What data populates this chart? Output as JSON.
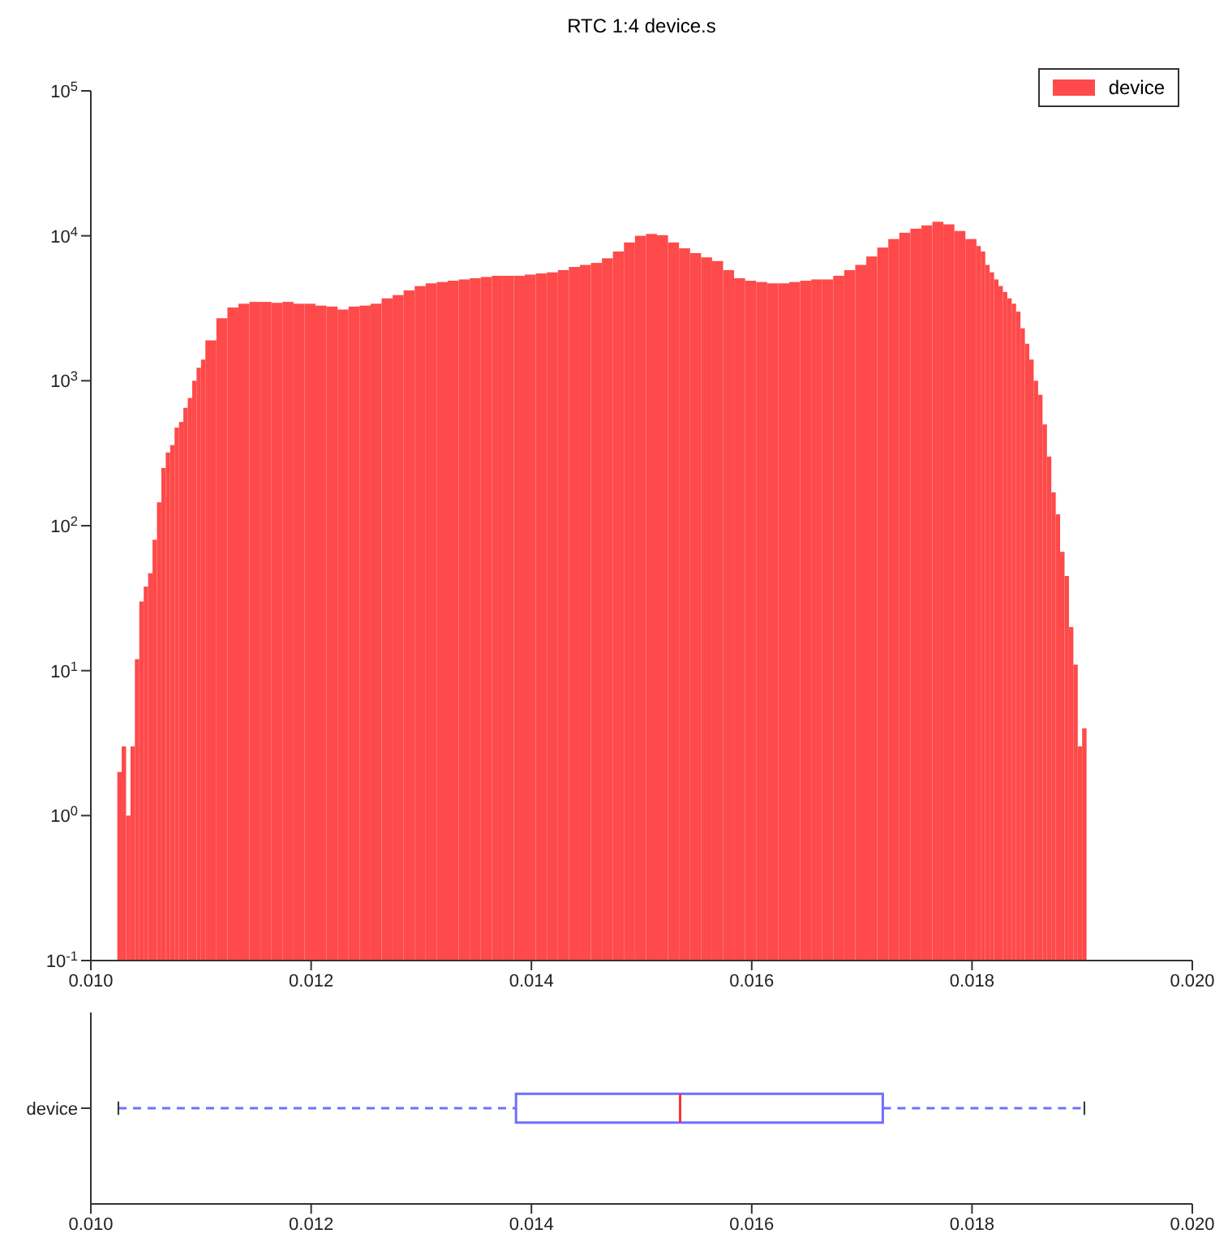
{
  "chart_data": [
    {
      "type": "histogram",
      "title": "RTC 1:4 device.s",
      "bins": [
        0.01024,
        0.01028,
        0.01032,
        0.01036,
        0.0104,
        0.01044,
        0.01048,
        0.01052,
        0.01056,
        0.0106,
        0.01064,
        0.01068,
        0.01072,
        0.01076,
        0.0108,
        0.01084,
        0.01088,
        0.01092,
        0.01096,
        0.011,
        0.01104,
        0.01114,
        0.01124,
        0.01134,
        0.01144,
        0.01154,
        0.01164,
        0.01174,
        0.01184,
        0.01194,
        0.01204,
        0.01214,
        0.01224,
        0.01234,
        0.01244,
        0.01254,
        0.01264,
        0.01274,
        0.01284,
        0.01294,
        0.01304,
        0.01314,
        0.01324,
        0.01334,
        0.01344,
        0.01354,
        0.01364,
        0.01374,
        0.01384,
        0.01394,
        0.01404,
        0.01414,
        0.01424,
        0.01434,
        0.01444,
        0.01454,
        0.01464,
        0.01474,
        0.01484,
        0.01494,
        0.01504,
        0.01514,
        0.01524,
        0.01534,
        0.01544,
        0.01554,
        0.01564,
        0.01574,
        0.01584,
        0.01594,
        0.01604,
        0.01614,
        0.01624,
        0.01634,
        0.01644,
        0.01654,
        0.01664,
        0.01674,
        0.01684,
        0.01694,
        0.01704,
        0.01714,
        0.01724,
        0.01734,
        0.01744,
        0.01754,
        0.01764,
        0.01774,
        0.01784,
        0.01794,
        0.01804,
        0.01808,
        0.01812,
        0.01816,
        0.0182,
        0.01824,
        0.01828,
        0.01832,
        0.01836,
        0.0184,
        0.01844,
        0.01848,
        0.01852,
        0.01856,
        0.0186,
        0.01864,
        0.01868,
        0.01872,
        0.01876,
        0.0188,
        0.01884,
        0.01888,
        0.01892,
        0.01896,
        0.019,
        0.01904
      ],
      "series": [
        {
          "name": "device",
          "color": "#fe4a4a",
          "values": [
            2,
            3,
            1,
            3,
            12,
            30,
            38,
            47,
            80,
            145,
            250,
            320,
            360,
            475,
            520,
            650,
            760,
            1000,
            1230,
            1400,
            1900,
            2700,
            3200,
            3400,
            3500,
            3500,
            3450,
            3500,
            3400,
            3400,
            3300,
            3250,
            3100,
            3250,
            3300,
            3400,
            3700,
            3900,
            4200,
            4500,
            4700,
            4800,
            4900,
            5000,
            5100,
            5200,
            5300,
            5300,
            5300,
            5400,
            5500,
            5600,
            5800,
            6100,
            6300,
            6500,
            7000,
            7800,
            9000,
            10000,
            10300,
            10100,
            9000,
            8200,
            7600,
            7100,
            6700,
            5800,
            5100,
            4900,
            4800,
            4700,
            4700,
            4800,
            4900,
            5000,
            5000,
            5300,
            5800,
            6300,
            7200,
            8300,
            9500,
            10500,
            11200,
            11800,
            12500,
            12000,
            10800,
            9500,
            8500,
            7800,
            6300,
            5600,
            5000,
            4500,
            4100,
            3700,
            3400,
            3000,
            2300,
            1800,
            1400,
            1000,
            800,
            500,
            300,
            170,
            120,
            66,
            45,
            20,
            11,
            3,
            4
          ]
        }
      ],
      "log": "y",
      "xlim": [
        0.01,
        0.02
      ],
      "xticks": [
        {
          "value": 0.01,
          "label": "0.010"
        },
        {
          "value": 0.012,
          "label": "0.012"
        },
        {
          "value": 0.014,
          "label": "0.014"
        },
        {
          "value": 0.016,
          "label": "0.016"
        },
        {
          "value": 0.018,
          "label": "0.018"
        },
        {
          "value": 0.02,
          "label": "0.020"
        }
      ],
      "ylim": [
        0.1,
        100000
      ],
      "yticks": [
        {
          "value": 0.1,
          "label": "10$^{-1}$"
        },
        {
          "value": 1,
          "label": "10$^{0}$"
        },
        {
          "value": 10,
          "label": "10$^{1}$"
        },
        {
          "value": 100,
          "label": "10$^{2}$"
        },
        {
          "value": 1000,
          "label": "10$^{3}$"
        },
        {
          "value": 10000,
          "label": "10$^{4}$"
        },
        {
          "value": 100000,
          "label": "10$^{5}$"
        }
      ],
      "legend": "top right"
    },
    {
      "type": "box",
      "orientation": "horizontal",
      "categories": [
        "device"
      ],
      "series": [
        {
          "color": "#6f6fff",
          "boxes": [
            {
              "low": 0.01025,
              "q1": 0.01386,
              "median": 0.01535,
              "q3": 0.01719,
              "high": 0.01902
            }
          ]
        }
      ],
      "xlim": [
        0.01,
        0.02
      ],
      "xticks": [
        {
          "value": 0.01,
          "label": "0.010"
        },
        {
          "value": 0.012,
          "label": "0.012"
        },
        {
          "value": 0.014,
          "label": "0.014"
        },
        {
          "value": 0.016,
          "label": "0.016"
        },
        {
          "value": 0.018,
          "label": "0.018"
        },
        {
          "value": 0.02,
          "label": "0.020"
        }
      ]
    }
  ]
}
